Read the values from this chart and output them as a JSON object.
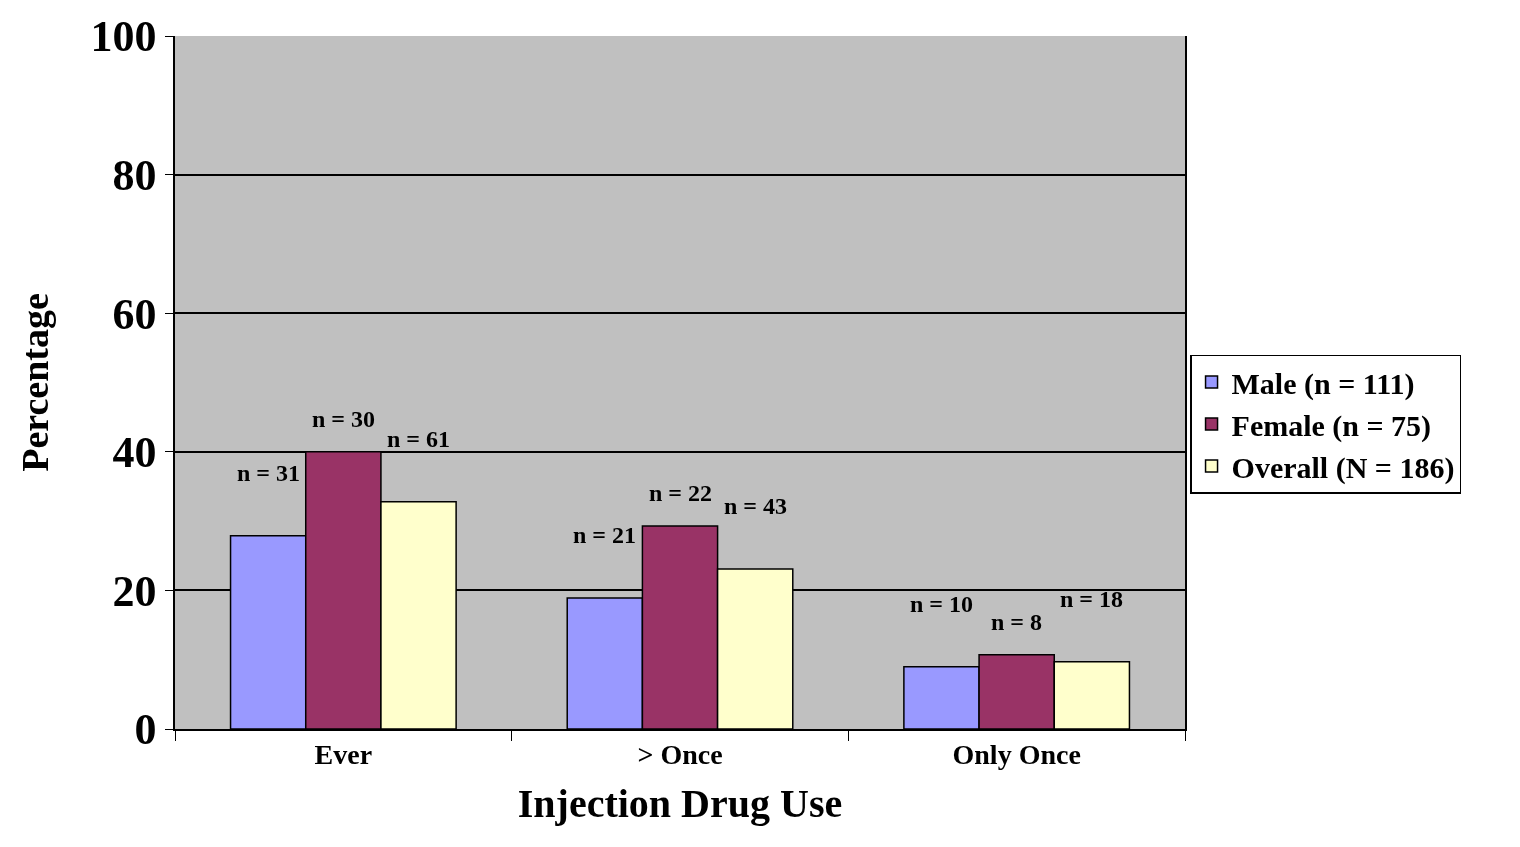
{
  "chart_data": {
    "type": "bar",
    "xlabel": "Injection Drug Use",
    "ylabel": "Percentage",
    "categories": [
      "Ever",
      "> Once",
      "Only Once"
    ],
    "series": [
      {
        "name": "Male (n = 111)",
        "color": "#9999ff",
        "values": [
          27.9,
          18.9,
          9.0
        ]
      },
      {
        "name": "Female (n = 75)",
        "color": "#993366",
        "values": [
          40.0,
          29.3,
          10.7
        ]
      },
      {
        "name": "Overall (N = 186)",
        "color": "#ffffcc",
        "values": [
          32.8,
          23.1,
          9.7
        ]
      }
    ],
    "annotations": [
      "n = 31",
      "n = 30",
      "n = 61",
      "n = 21",
      "n = 22",
      "n = 43",
      "n = 10",
      "n = 8",
      "n = 18"
    ],
    "ylim": [
      0,
      100
    ],
    "yticks": [
      0,
      20,
      40,
      60,
      80,
      100
    ],
    "grid": "y",
    "legend": "right"
  }
}
